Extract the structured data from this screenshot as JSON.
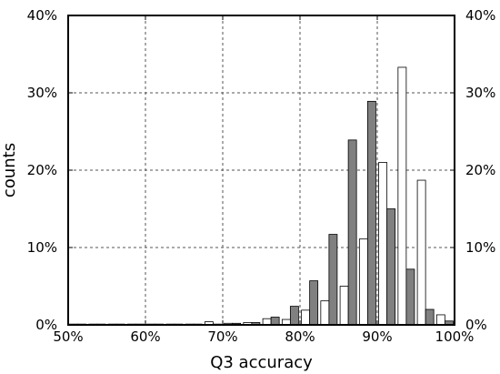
{
  "chart_data": {
    "type": "bar",
    "title": "",
    "xlabel": "Q3 accuracy",
    "ylabel": "counts",
    "xlim": [
      50,
      100
    ],
    "ylim": [
      0,
      40
    ],
    "x_ticks": [
      {
        "value": 50,
        "label": "50%"
      },
      {
        "value": 60,
        "label": "60%"
      },
      {
        "value": 70,
        "label": "70%"
      },
      {
        "value": 80,
        "label": "80%"
      },
      {
        "value": 90,
        "label": "90%"
      },
      {
        "value": 100,
        "label": "100%"
      }
    ],
    "y_ticks": [
      {
        "value": 0,
        "label": "0%"
      },
      {
        "value": 10,
        "label": "10%"
      },
      {
        "value": 20,
        "label": "20%"
      },
      {
        "value": 30,
        "label": "30%"
      },
      {
        "value": 40,
        "label": "40%"
      }
    ],
    "right_axis_ticks": true,
    "grid": true,
    "grid_style": "dotted",
    "legend": "none",
    "bin_width": 2.5,
    "bin_starts": [
      50,
      52.5,
      55,
      57.5,
      60,
      62.5,
      65,
      67.5,
      70,
      72.5,
      75,
      77.5,
      80,
      82.5,
      85,
      87.5,
      90,
      92.5,
      95,
      97.5
    ],
    "series": [
      {
        "fill": "#ffffff",
        "values": [
          0.1,
          0.1,
          0.1,
          0.1,
          0.1,
          0.1,
          0.1,
          0.4,
          0.2,
          0.3,
          0.8,
          0.7,
          1.9,
          3.1,
          5.0,
          11.1,
          21.0,
          33.3,
          18.7,
          1.3
        ]
      },
      {
        "fill": "#808080",
        "values": [
          0.1,
          0.1,
          0.1,
          0.1,
          0.1,
          0.1,
          0.1,
          0.1,
          0.2,
          0.3,
          1.0,
          2.4,
          5.7,
          11.7,
          23.9,
          28.9,
          15.0,
          7.2,
          2.0,
          0.5
        ]
      }
    ]
  }
}
